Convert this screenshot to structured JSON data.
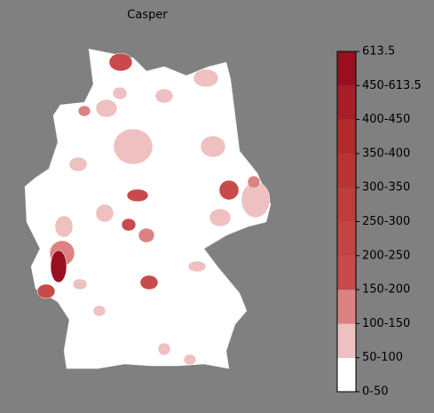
{
  "title": "Casper",
  "legend": {
    "labels": [
      "0-50",
      "50-100",
      "100-150",
      "150-200",
      "200-250",
      "250-300",
      "300-350",
      "350-400",
      "400-450",
      "450-613.5",
      "613.5"
    ],
    "colors": [
      "#ffffff",
      "#efc0c0",
      "#dc8282",
      "#c94a4a",
      "#c44444",
      "#bf3c3c",
      "#b93333",
      "#b22a2a",
      "#a81e26",
      "#9a0f20"
    ]
  }
}
